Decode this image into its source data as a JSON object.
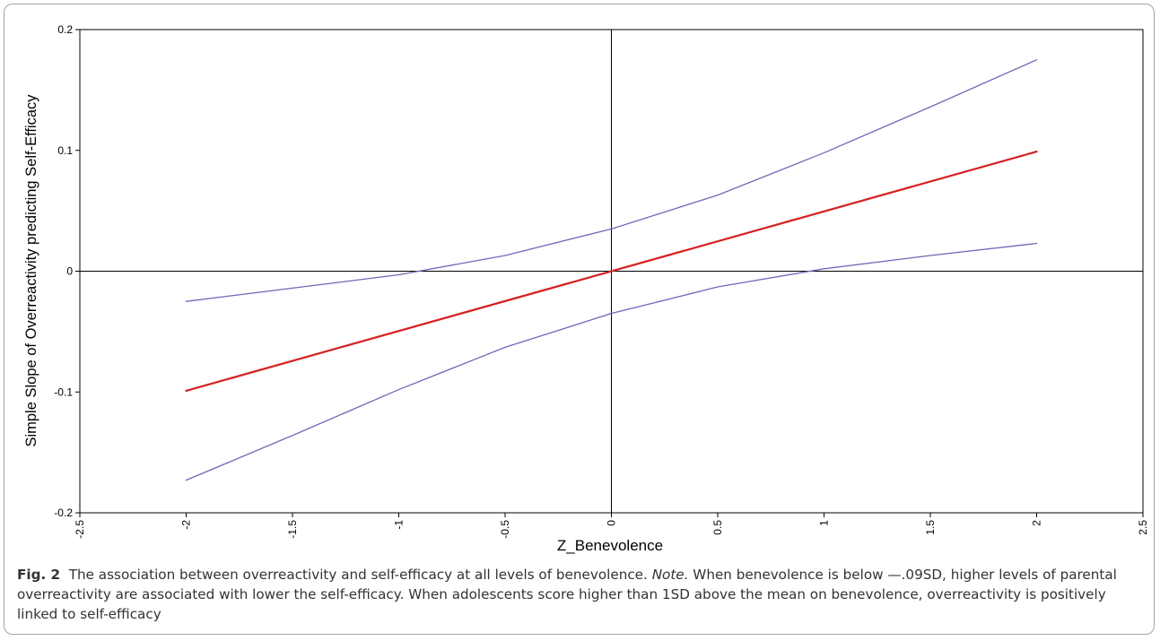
{
  "chart_data": {
    "type": "line",
    "xlabel": "Z_Benevolence",
    "ylabel": "Simple Slope of Overreactivity predicting Self-Efficacy",
    "xlim": [
      -2.5,
      2.5
    ],
    "ylim": [
      -0.2,
      0.2
    ],
    "x_ticks": [
      "-2.5",
      "-2",
      "-1.5",
      "-1",
      "-0.5",
      "0",
      "0.5",
      "1",
      "1.5",
      "2",
      "2.5"
    ],
    "y_ticks": [
      "-0.2",
      "-0.1",
      "0",
      "0.1",
      "0.2"
    ],
    "reference_lines": {
      "x": 0,
      "y": 0
    },
    "grid": false,
    "series": [
      {
        "color": "#d62020",
        "x": [
          -2,
          2
        ],
        "y": [
          -0.099,
          0.099
        ]
      },
      {
        "color": "#6a6ab8",
        "x": [
          -2,
          -1.5,
          -1,
          -0.5,
          0,
          0.5,
          1,
          1.5,
          2
        ],
        "y": [
          -0.025,
          -0.014,
          -0.003,
          0.013,
          0.035,
          0.063,
          0.098,
          0.136,
          0.175
        ]
      },
      {
        "color": "#6a6ab8",
        "x": [
          -2,
          -1.5,
          -1,
          -0.5,
          0,
          0.5,
          1,
          1.5,
          2
        ],
        "y": [
          -0.173,
          -0.136,
          -0.098,
          -0.063,
          -0.035,
          -0.013,
          0.002,
          0.013,
          0.023
        ]
      }
    ]
  },
  "caption": {
    "label": "Fig. 2",
    "text": "The association between overreactivity and self-efficacy at all levels of benevolence.",
    "note_label": "Note.",
    "note_text": "When benevolence is below —.09SD, higher levels of parental overreactivity are associated with lower the self-efficacy. When adolescents score higher than 1SD above the mean on benevolence, overreactivity is positively linked to self-efficacy"
  }
}
